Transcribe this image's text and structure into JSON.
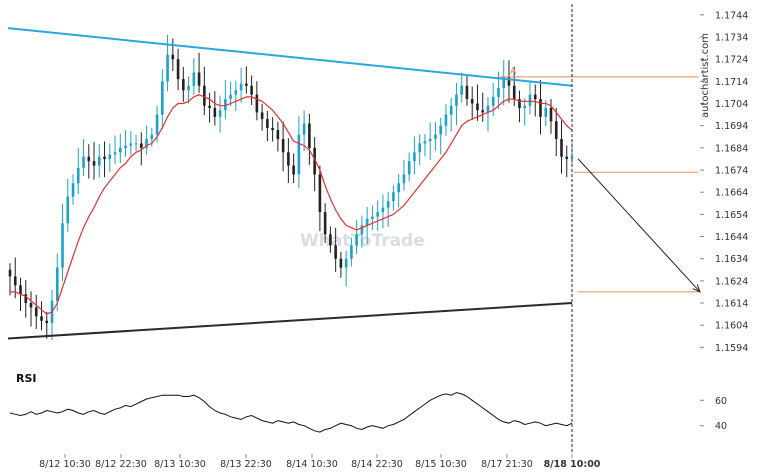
{
  "site": "autochartist.com",
  "watermark": "WhatToTrade",
  "rsi_label": "RSI",
  "pattern_point_label": "A",
  "colors": {
    "bull": "#1aa3c9",
    "bear": "#222222",
    "ma": "#e8312f",
    "resistance": "#2aa6e0",
    "support": "#2b2b2b",
    "target": "#f08a4b",
    "rsi": "#111111",
    "projection": "#222222"
  },
  "chart_data": {
    "type": "line",
    "title": "",
    "price_axis": {
      "ticks": [
        "1.1744",
        "1.1734",
        "1.1724",
        "1.1714",
        "1.1704",
        "1.1694",
        "1.1684",
        "1.1674",
        "1.1664",
        "1.1654",
        "1.1644",
        "1.1634",
        "1.1624",
        "1.1614",
        "1.1604",
        "1.1594"
      ],
      "range": [
        1.1591,
        1.1748
      ]
    },
    "x_axis": {
      "ticks": [
        "8/12 10:30",
        "8/12 22:30",
        "8/13 10:30",
        "8/13 22:30",
        "8/14 10:30",
        "8/14 22:30",
        "8/15 10:30",
        "8/17 21:30",
        "8/18 10:00"
      ],
      "current_marker": "8/18 10:00"
    },
    "rsi_axis": {
      "ticks": [
        "60",
        "40"
      ],
      "range": [
        28,
        72
      ]
    },
    "series": [
      {
        "kind": "candlestick",
        "values": [
          1.1626,
          1.1622,
          1.1618,
          1.1614,
          1.1612,
          1.1608,
          1.1606,
          1.1605,
          1.1615,
          1.163,
          1.165,
          1.1662,
          1.1668,
          1.1675,
          1.168,
          1.1678,
          1.1676,
          1.168,
          1.1679,
          1.1681,
          1.1682,
          1.1684,
          1.1685,
          1.1686,
          1.1686,
          1.1684,
          1.1688,
          1.169,
          1.1699,
          1.1714,
          1.1726,
          1.1724,
          1.1715,
          1.171,
          1.1712,
          1.1718,
          1.1712,
          1.1703,
          1.1702,
          1.1698,
          1.1701,
          1.1706,
          1.1708,
          1.171,
          1.1713,
          1.1712,
          1.1708,
          1.17,
          1.1697,
          1.1693,
          1.1692,
          1.1688,
          1.1682,
          1.1676,
          1.1672,
          1.169,
          1.1695,
          1.1684,
          1.1672,
          1.1655,
          1.1645,
          1.164,
          1.1634,
          1.163,
          1.1634,
          1.164,
          1.1645,
          1.1649,
          1.1652,
          1.1653,
          1.1655,
          1.1657,
          1.166,
          1.1664,
          1.1668,
          1.1672,
          1.1678,
          1.1682,
          1.1686,
          1.1687,
          1.1688,
          1.169,
          1.1694,
          1.1699,
          1.1703,
          1.1708,
          1.1712,
          1.1706,
          1.1704,
          1.1701,
          1.17,
          1.1703,
          1.1707,
          1.1711,
          1.1716,
          1.1712,
          1.1706,
          1.1702,
          1.1703,
          1.1708,
          1.1706,
          1.1698,
          1.1702,
          1.1696,
          1.1688,
          1.168,
          1.1679,
          1.168
        ]
      },
      {
        "kind": "moving-average",
        "values": [
          1.1619,
          1.1619,
          1.1618,
          1.1617,
          1.1615,
          1.1613,
          1.1611,
          1.1609,
          1.161,
          1.1614,
          1.1621,
          1.1628,
          1.1635,
          1.1642,
          1.1648,
          1.1653,
          1.1657,
          1.1662,
          1.1666,
          1.1669,
          1.1672,
          1.1675,
          1.1677,
          1.168,
          1.1682,
          1.1683,
          1.1685,
          1.1686,
          1.1689,
          1.1693,
          1.1698,
          1.1702,
          1.1704,
          1.1704,
          1.1705,
          1.1707,
          1.1708,
          1.1707,
          1.1706,
          1.1704,
          1.1703,
          1.1703,
          1.1704,
          1.1705,
          1.1706,
          1.1707,
          1.1707,
          1.1706,
          1.1705,
          1.1703,
          1.1701,
          1.1698,
          1.1695,
          1.1691,
          1.1687,
          1.1686,
          1.1685,
          1.1683,
          1.1679,
          1.1674,
          1.1667,
          1.1661,
          1.1656,
          1.1652,
          1.1649,
          1.1648,
          1.1647,
          1.1648,
          1.1649,
          1.165,
          1.1651,
          1.1652,
          1.1653,
          1.1654,
          1.1656,
          1.1658,
          1.1661,
          1.1664,
          1.1667,
          1.167,
          1.1673,
          1.1676,
          1.1679,
          1.1682,
          1.1686,
          1.169,
          1.1694,
          1.1696,
          1.1697,
          1.1698,
          1.1699,
          1.17,
          1.1701,
          1.1703,
          1.1705,
          1.1706,
          1.1706,
          1.1705,
          1.1705,
          1.1705,
          1.1705,
          1.1704,
          1.1704,
          1.1703,
          1.17,
          1.1697,
          1.1694,
          1.1692
        ]
      },
      {
        "kind": "rsi",
        "values": [
          50,
          49,
          48,
          49,
          51,
          49,
          50,
          52,
          51,
          50,
          51,
          53,
          52,
          50,
          49,
          51,
          52,
          50,
          49,
          51,
          53,
          54,
          56,
          55,
          57,
          59,
          61,
          62,
          63,
          64,
          64,
          64,
          64,
          63,
          63,
          64,
          62,
          59,
          55,
          52,
          50,
          49,
          47,
          46,
          45,
          47,
          48,
          46,
          44,
          43,
          42,
          44,
          43,
          42,
          43,
          41,
          40,
          38,
          36,
          35,
          37,
          38,
          40,
          42,
          41,
          40,
          38,
          37,
          39,
          40,
          39,
          38,
          40,
          41,
          43,
          45,
          48,
          51,
          54,
          57,
          60,
          62,
          64,
          65,
          64,
          66,
          65,
          63,
          60,
          57,
          54,
          51,
          48,
          45,
          43,
          42,
          44,
          43,
          41,
          42,
          43,
          42,
          40,
          41,
          42,
          41,
          40,
          42
        ]
      }
    ],
    "annotations": {
      "resistance_line": {
        "from": {
          "x": "start",
          "y": 1.1738
        },
        "to": {
          "x": "8/18 10:00",
          "y": 1.1712
        }
      },
      "support_line": {
        "from": {
          "x": "start",
          "y": 1.1598
        },
        "to": {
          "x": "8/18 10:00",
          "y": 1.1614
        }
      },
      "target_levels": [
        1.1716,
        1.1673,
        1.1619
      ],
      "projection_target": 1.1619
    }
  }
}
